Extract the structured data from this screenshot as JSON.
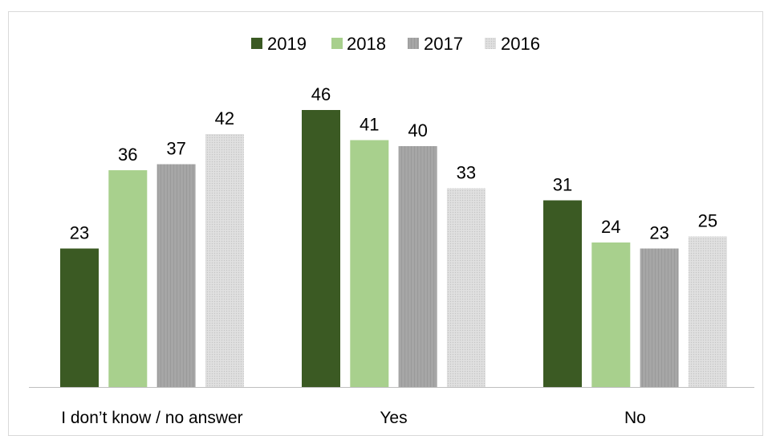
{
  "chart_data": {
    "type": "bar",
    "title": "",
    "xlabel": "",
    "ylabel": "",
    "categories": [
      "I don’t know / no answer",
      "Yes",
      "No"
    ],
    "series": [
      {
        "name": "2019",
        "values": [
          23,
          46,
          31
        ],
        "color": "#3b5a23"
      },
      {
        "name": "2018",
        "values": [
          36,
          41,
          24
        ],
        "color": "#a8d08d"
      },
      {
        "name": "2017",
        "values": [
          37,
          40,
          23
        ],
        "color": "#a5a5a5"
      },
      {
        "name": "2016",
        "values": [
          42,
          33,
          25
        ],
        "color": "#d9d9d9"
      }
    ],
    "ylim": [
      0,
      50
    ],
    "legend_position": "top",
    "grid": false,
    "data_labels": true
  }
}
